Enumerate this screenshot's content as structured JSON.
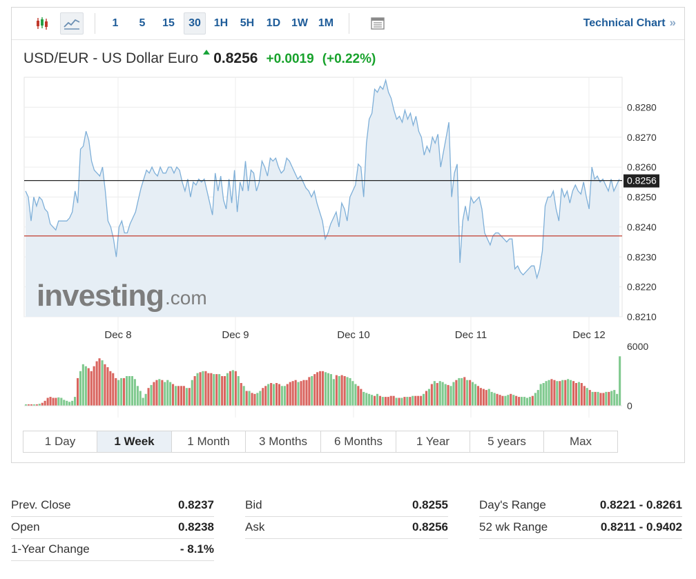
{
  "toolbar": {
    "chart_type_icons": [
      "candlestick-icon",
      "line-chart-icon"
    ],
    "intervals": [
      "1",
      "5",
      "15",
      "30",
      "1H",
      "5H",
      "1D",
      "1W",
      "1M"
    ],
    "active_interval": "30",
    "table_icon": "table-icon",
    "technical_chart_label": "Technical Chart",
    "technical_chart_chevron": "»"
  },
  "quote": {
    "name": "USD/EUR - US Dollar Euro",
    "last": "0.8256",
    "change": "+0.0019",
    "change_pct": "(+0.22%)",
    "direction": "up",
    "up_color": "#18a22c"
  },
  "watermark": {
    "brand": "investing",
    "suffix": ".com"
  },
  "chart_data": {
    "type": "area",
    "title": "",
    "xlabel": "",
    "ylabel": "",
    "x_ticks": [
      "Dec 8",
      "Dec 9",
      "Dec 10",
      "Dec 11",
      "Dec 12"
    ],
    "y_ticks": [
      "0.8280",
      "0.8270",
      "0.8260",
      "0.8250",
      "0.8240",
      "0.8230",
      "0.8220",
      "0.8210"
    ],
    "ylim": [
      0.821,
      0.829
    ],
    "grid": true,
    "last_price_label": "0.8256",
    "last_price": 0.82555,
    "prev_close": 0.8237,
    "line_color": "#7eafd8",
    "fill_color": "#e6eef5",
    "prev_close_color": "#c0392b",
    "last_line_color": "#222222",
    "series": [
      {
        "values": [
          0.8252,
          0.825,
          0.8242,
          0.825,
          0.8247,
          0.825,
          0.8249,
          0.8246,
          0.8245,
          0.8241,
          0.824,
          0.8239,
          0.8242,
          0.8242,
          0.8242,
          0.8242,
          0.8243,
          0.8245,
          0.8252,
          0.8248,
          0.8266,
          0.8267,
          0.8272,
          0.8269,
          0.8262,
          0.8259,
          0.8258,
          0.8257,
          0.826,
          0.8252,
          0.8242,
          0.824,
          0.8236,
          0.823,
          0.824,
          0.8242,
          0.8238,
          0.8238,
          0.8241,
          0.8243,
          0.8245,
          0.8249,
          0.8253,
          0.8256,
          0.8259,
          0.8258,
          0.826,
          0.8258,
          0.8257,
          0.826,
          0.8258,
          0.8258,
          0.826,
          0.826,
          0.8258,
          0.826,
          0.8259,
          0.8255,
          0.8252,
          0.8256,
          0.825,
          0.8255,
          0.8254,
          0.8256,
          0.8255,
          0.8256,
          0.8252,
          0.8248,
          0.8244,
          0.8258,
          0.8252,
          0.8257,
          0.8249,
          0.8246,
          0.8256,
          0.8248,
          0.8259,
          0.8245,
          0.8255,
          0.8252,
          0.8262,
          0.8252,
          0.8259,
          0.8258,
          0.8252,
          0.8255,
          0.8262,
          0.826,
          0.8257,
          0.8263,
          0.8262,
          0.8263,
          0.826,
          0.8258,
          0.8259,
          0.8263,
          0.8262,
          0.826,
          0.8258,
          0.8256,
          0.8257,
          0.8255,
          0.8253,
          0.8252,
          0.825,
          0.8252,
          0.8248,
          0.8245,
          0.8242,
          0.8236,
          0.8238,
          0.8241,
          0.8243,
          0.8245,
          0.824,
          0.8248,
          0.8246,
          0.8242,
          0.825,
          0.8252,
          0.8254,
          0.8261,
          0.826,
          0.825,
          0.8268,
          0.8276,
          0.8278,
          0.8286,
          0.8285,
          0.8287,
          0.8286,
          0.8289,
          0.8285,
          0.8283,
          0.8279,
          0.8276,
          0.8277,
          0.8275,
          0.8279,
          0.8276,
          0.8278,
          0.8274,
          0.8277,
          0.8272,
          0.827,
          0.8264,
          0.8267,
          0.8265,
          0.827,
          0.8268,
          0.8271,
          0.826,
          0.8265,
          0.827,
          0.8275,
          0.825,
          0.8258,
          0.8261,
          0.8228,
          0.8242,
          0.8247,
          0.8242,
          0.825,
          0.8248,
          0.8249,
          0.825,
          0.8246,
          0.8238,
          0.8236,
          0.8234,
          0.8237,
          0.8238,
          0.8238,
          0.8237,
          0.8236,
          0.8235,
          0.8236,
          0.8236,
          0.8226,
          0.8227,
          0.8225,
          0.8224,
          0.8225,
          0.8226,
          0.8227,
          0.8227,
          0.8223,
          0.8226,
          0.8232,
          0.8247,
          0.825,
          0.825,
          0.8252,
          0.8246,
          0.8242,
          0.8253,
          0.825,
          0.8252,
          0.8248,
          0.8252,
          0.8254,
          0.8252,
          0.8251,
          0.8255,
          0.825,
          0.8246,
          0.826,
          0.8256,
          0.8257,
          0.8255,
          0.8256,
          0.8254,
          0.8252,
          0.8256,
          0.8252,
          0.8254,
          0.8256
        ]
      }
    ],
    "volume": {
      "y_ticks": [
        "6000",
        "0"
      ],
      "ylim": [
        0,
        6000
      ],
      "up_color": "#7fc98e",
      "down_color": "#d9655f",
      "values": [
        150,
        150,
        150,
        150,
        150,
        200,
        300,
        500,
        800,
        900,
        800,
        800,
        850,
        800,
        600,
        500,
        400,
        500,
        900,
        2800,
        3500,
        4200,
        4000,
        3800,
        3500,
        4000,
        4500,
        4800,
        4600,
        4200,
        3900,
        3500,
        3300,
        2800,
        2600,
        2800,
        2800,
        3000,
        3000,
        3000,
        2700,
        2000,
        1500,
        800,
        1200,
        1800,
        2100,
        2400,
        2600,
        2700,
        2600,
        2400,
        2600,
        2400,
        2200,
        2000,
        2000,
        2000,
        2000,
        1800,
        1800,
        2600,
        3000,
        3300,
        3400,
        3500,
        3500,
        3300,
        3300,
        3200,
        3200,
        3200,
        3000,
        3000,
        3300,
        3500,
        3600,
        3500,
        3000,
        2300,
        2000,
        1500,
        1500,
        1300,
        1200,
        1300,
        1500,
        1800,
        2000,
        2200,
        2300,
        2200,
        2300,
        2200,
        2000,
        2000,
        2200,
        2400,
        2500,
        2600,
        2400,
        2500,
        2600,
        2600,
        2900,
        3000,
        3200,
        3400,
        3500,
        3500,
        3400,
        3300,
        3200,
        2700,
        3100,
        3000,
        3100,
        3000,
        2900,
        2800,
        2500,
        2200,
        2000,
        1700,
        1400,
        1300,
        1200,
        1100,
        1000,
        1200,
        1000,
        900,
        900,
        900,
        1000,
        1000,
        800,
        800,
        800,
        900,
        900,
        900,
        1000,
        1000,
        1000,
        1000,
        1200,
        1500,
        1700,
        2200,
        2500,
        2300,
        2500,
        2400,
        2200,
        2100,
        2000,
        2400,
        2600,
        2800,
        2800,
        2900,
        2600,
        2600,
        2400,
        2200,
        2000,
        1800,
        1700,
        1600,
        1700,
        1400,
        1300,
        1200,
        1100,
        1000,
        1000,
        1100,
        1200,
        1100,
        1000,
        900,
        900,
        900,
        800,
        900,
        1000,
        1300,
        1600,
        2200,
        2300,
        2500,
        2600,
        2700,
        2600,
        2500,
        2500,
        2600,
        2600,
        2700,
        2600,
        2500,
        2300,
        2400,
        2300,
        2000,
        1800,
        1600,
        1400,
        1400,
        1400,
        1300,
        1300,
        1400,
        1400,
        1500,
        1600,
        1200,
        5000
      ]
    }
  },
  "ranges": {
    "items": [
      "1 Day",
      "1 Week",
      "1 Month",
      "3 Months",
      "6 Months",
      "1 Year",
      "5 years",
      "Max"
    ],
    "active": "1 Week"
  },
  "stats": [
    [
      {
        "label": "Prev. Close",
        "value": "0.8237"
      },
      {
        "label": "Open",
        "value": "0.8238"
      },
      {
        "label": "1-Year Change",
        "value": "- 8.1%"
      }
    ],
    [
      {
        "label": "Bid",
        "value": "0.8255"
      },
      {
        "label": "Ask",
        "value": "0.8256"
      }
    ],
    [
      {
        "label": "Day's Range",
        "value": "0.8221 - 0.8261"
      },
      {
        "label": "52 wk Range",
        "value": "0.8211 - 0.9402"
      }
    ]
  ]
}
